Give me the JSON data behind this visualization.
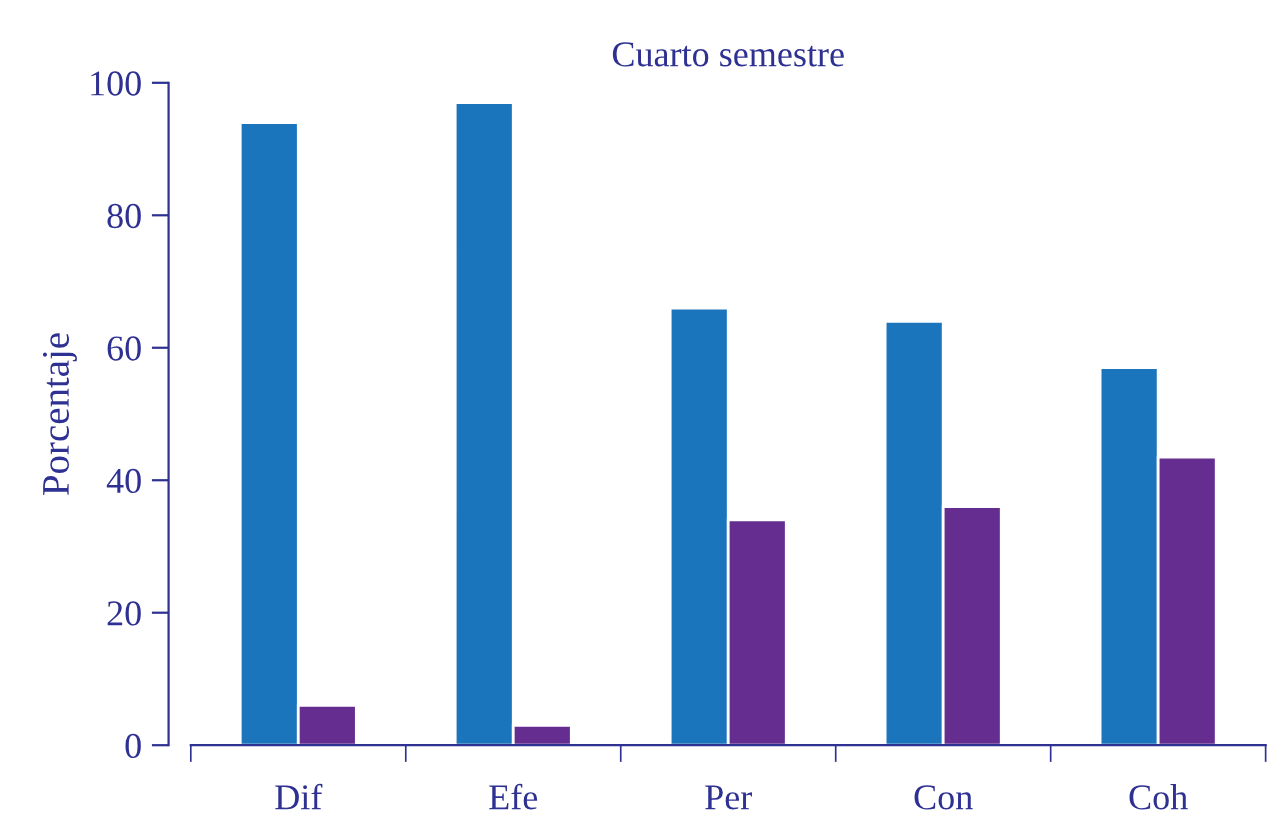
{
  "chart_data": {
    "type": "bar",
    "title": "Cuarto semestre",
    "ylabel": "Porcentaje",
    "categories": [
      "Dif",
      "Efe",
      "Per",
      "Con",
      "Coh"
    ],
    "series": [
      {
        "color": "#1b75bc",
        "values": [
          94,
          97,
          66,
          64,
          57
        ]
      },
      {
        "color": "#662d91",
        "values": [
          6,
          3,
          34,
          36,
          43.5
        ]
      }
    ],
    "ylim": [
      0,
      100
    ],
    "yticks": [
      0,
      20,
      40,
      60,
      80,
      100
    ],
    "grid": false,
    "legend": false
  }
}
